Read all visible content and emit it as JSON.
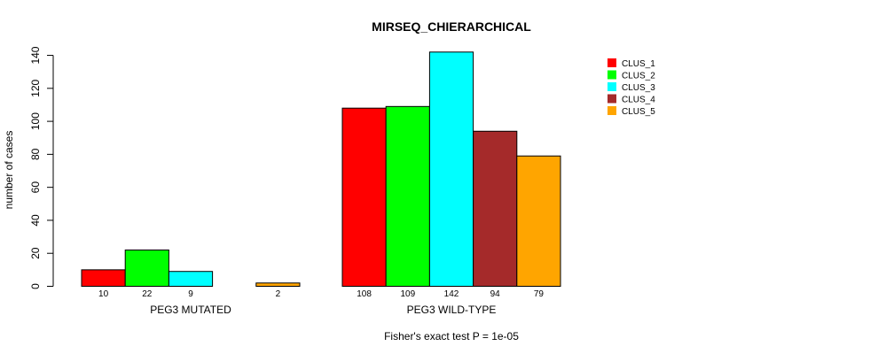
{
  "chart_data": {
    "type": "bar",
    "title": "MIRSEQ_CHIERARCHICAL",
    "ylabel": "number of cases",
    "footnote": "Fisher's exact test P = 1e-05",
    "ylim": [
      0,
      145
    ],
    "yticks": [
      0,
      20,
      40,
      60,
      80,
      100,
      120,
      140
    ],
    "groups": [
      "PEG3 MUTATED",
      "PEG3 WILD-TYPE"
    ],
    "series": [
      {
        "name": "CLUS_1",
        "color": "#ff0000",
        "values": [
          10,
          108
        ]
      },
      {
        "name": "CLUS_2",
        "color": "#00ff00",
        "values": [
          22,
          109
        ]
      },
      {
        "name": "CLUS_3",
        "color": "#00ffff",
        "values": [
          9,
          142
        ]
      },
      {
        "name": "CLUS_4",
        "color": "#a52a2a",
        "values": [
          0,
          94
        ]
      },
      {
        "name": "CLUS_5",
        "color": "#ffa500",
        "values": [
          2,
          79
        ]
      }
    ],
    "bar_labels": [
      [
        "10",
        "22",
        "9",
        "",
        "2"
      ],
      [
        "108",
        "109",
        "142",
        "94",
        "79"
      ]
    ],
    "legend_position": "top-right",
    "grid": false
  }
}
